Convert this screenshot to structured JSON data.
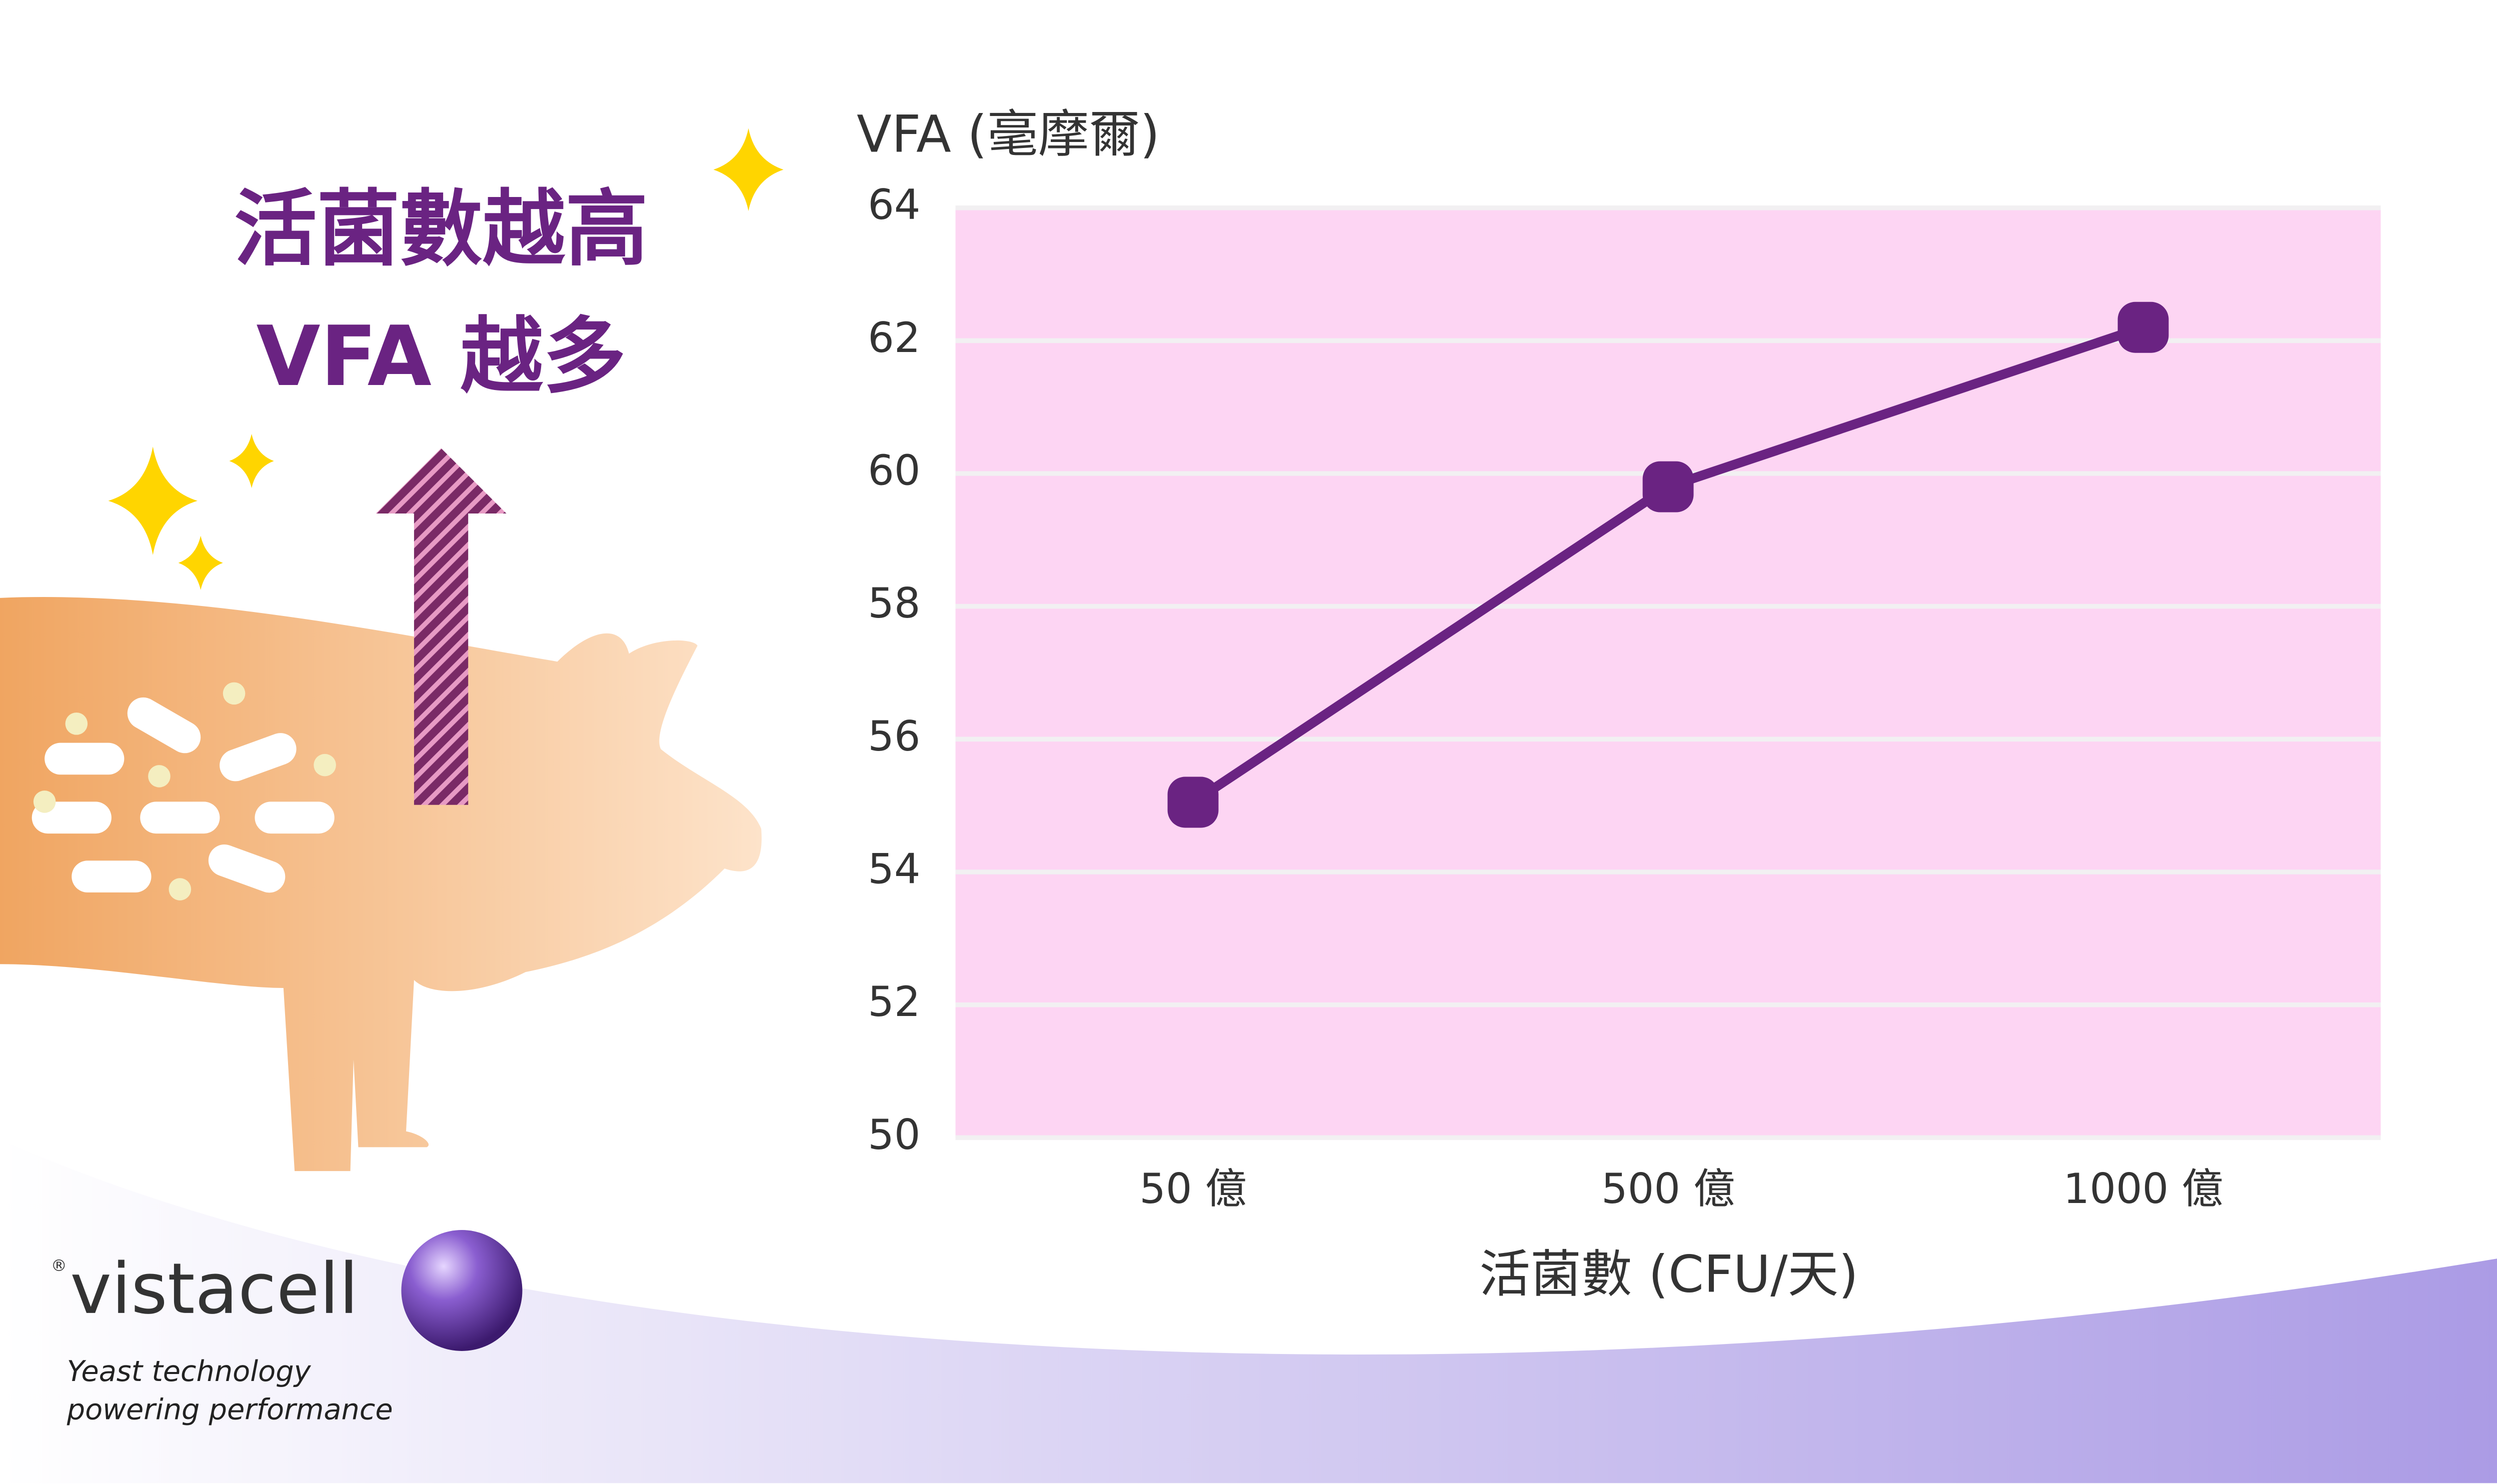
{
  "headline": {
    "line1": "活菌數越高",
    "line2": "VFA 越多"
  },
  "logo": {
    "brand": "vistacell",
    "mark": "®",
    "tagline1": "Yeast technology",
    "tagline2": "powering performance"
  },
  "chart_data": {
    "type": "line",
    "y_label": "VFA (毫摩爾)",
    "x_label": "活菌數 (CFU/天)",
    "categories": [
      "50 億",
      "500 億",
      "1000 億"
    ],
    "values": [
      55.05,
      59.8,
      62.2
    ],
    "color": "#6a2382",
    "background": "#fdd5f3",
    "ylim": [
      50,
      64
    ],
    "yticks": [
      50,
      52,
      54,
      56,
      58,
      60,
      62,
      64
    ],
    "grid": true
  }
}
